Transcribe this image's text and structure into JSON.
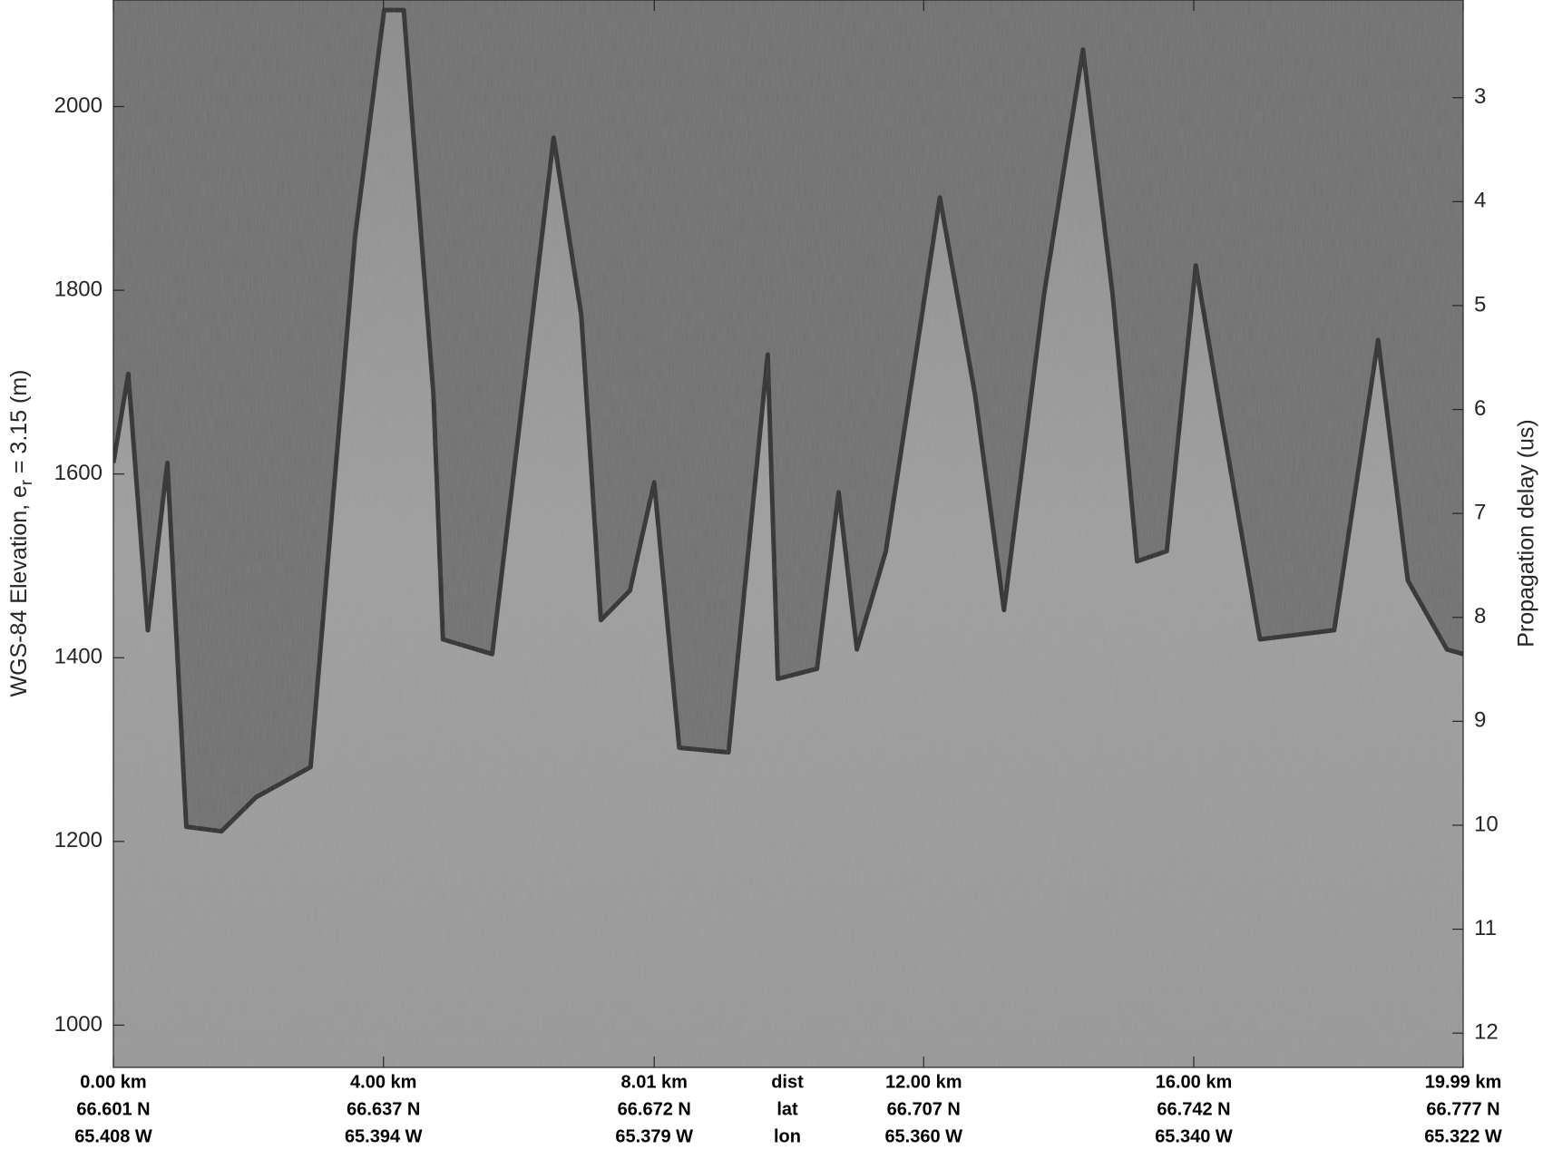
{
  "chart_data": {
    "type": "radargram",
    "ylabel": "WGS-84 Elevation, e",
    "ylabel_sub": "r",
    "ylabel_tail": " = 3.15 (m)",
    "y2label": "Propagation delay (us)",
    "xlim": [
      0,
      19.99
    ],
    "xticks": [
      {
        "value": 0,
        "label": "0.00 km"
      },
      {
        "value": 4,
        "label": "4.00 km"
      },
      {
        "value": 8.01,
        "label": "8.01 km"
      },
      {
        "value": 12,
        "label": "12.00 km"
      },
      {
        "value": 16,
        "label": "16.00 km"
      },
      {
        "value": 19.99,
        "label": "19.99 km"
      }
    ],
    "lat_labels": [
      "66.601 N",
      "66.637 N",
      "66.672 N",
      "66.707 N",
      "66.742 N",
      "66.777 N"
    ],
    "lon_labels": [
      "65.408 W",
      "65.394 W",
      "65.379 W",
      "65.360 W",
      "65.340 W",
      "65.322 W"
    ],
    "row_labels": [
      "dist",
      "lat",
      "lon"
    ],
    "ylim": [
      954,
      2116
    ],
    "yticks": [
      1000,
      1200,
      1400,
      1600,
      1800,
      2000
    ],
    "y2lim": [
      12.33,
      2.06
    ],
    "y2ticks": [
      3,
      4,
      5,
      6,
      7,
      8,
      9,
      10,
      11,
      12
    ],
    "color": "#2e2e2e",
    "x": [
      0,
      0.22,
      0.51,
      0.8,
      1.08,
      1.6,
      2.11,
      2.92,
      3.58,
      4.01,
      4.3,
      4.74,
      4.88,
      5.61,
      6.19,
      6.52,
      6.93,
      7.22,
      7.65,
      8.01,
      8.38,
      9.11,
      9.69,
      9.84,
      10.42,
      10.74,
      11.01,
      11.44,
      12.24,
      12.76,
      13.19,
      13.78,
      14.36,
      14.8,
      15.16,
      15.6,
      16.03,
      16.4,
      16.98,
      18.08,
      18.73,
      19.17,
      19.75,
      19.99
    ],
    "values": [
      1612,
      1709,
      1430,
      1612,
      1216,
      1211,
      1248,
      1281,
      1859,
      2105,
      2105,
      1687,
      1420,
      1404,
      1762,
      1966,
      1773,
      1441,
      1473,
      1591,
      1302,
      1297,
      1730,
      1377,
      1388,
      1580,
      1409,
      1516,
      1901,
      1687,
      1452,
      1794,
      2062,
      1794,
      1505,
      1516,
      1827,
      1666,
      1420,
      1430,
      1746,
      1484,
      1409,
      1404
    ]
  }
}
